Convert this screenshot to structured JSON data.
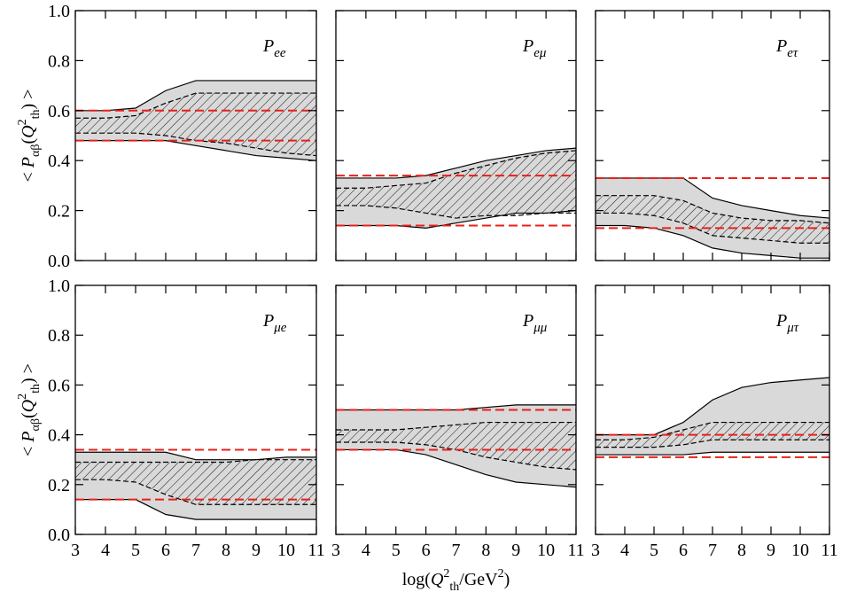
{
  "chart_data": [
    {
      "type": "band",
      "title": "P",
      "title_sub": "ee",
      "ylabel": [
        {
          "text": "< ",
          "shift": "none"
        },
        {
          "text": "P",
          "shift": "none",
          "italic": true
        },
        {
          "text": "αβ",
          "shift": "sub"
        },
        {
          "text": "(",
          "shift": "none"
        },
        {
          "text": "Q",
          "shift": "none",
          "italic": true
        },
        {
          "text": "2",
          "shift": "super"
        },
        {
          "text": "th",
          "shift": "sub"
        },
        {
          "text": ") >",
          "shift": "none"
        }
      ],
      "x": [
        3,
        4,
        5,
        6,
        7,
        8,
        9,
        10,
        11
      ],
      "bands": [
        {
          "color": "#d9d9d9",
          "edge_color": "#000000",
          "hatch": false,
          "upper": [
            0.6,
            0.6,
            0.61,
            0.68,
            0.72,
            0.72,
            0.72,
            0.72,
            0.72
          ],
          "lower": [
            0.48,
            0.48,
            0.48,
            0.48,
            0.46,
            0.44,
            0.42,
            0.41,
            0.4
          ]
        },
        {
          "color": "#000000",
          "edge_color": "#000000",
          "hatch": true,
          "upper": [
            0.57,
            0.57,
            0.58,
            0.63,
            0.67,
            0.67,
            0.67,
            0.67,
            0.67
          ],
          "lower": [
            0.51,
            0.51,
            0.51,
            0.5,
            0.48,
            0.47,
            0.45,
            0.43,
            0.42
          ]
        }
      ],
      "lines": [
        {
          "color": "#e8201a",
          "value": 0.6
        },
        {
          "color": "#e8201a",
          "value": 0.48
        }
      ],
      "xlim": [
        3,
        11
      ],
      "xticks": [
        3,
        4,
        5,
        6,
        7,
        8,
        9,
        10,
        11
      ],
      "ylim": [
        0,
        1
      ],
      "yticks": [
        {
          "value": 0,
          "label": "0.0"
        },
        {
          "value": 0.2,
          "label": "0.2"
        },
        {
          "value": 0.4,
          "label": "0.4"
        },
        {
          "value": 0.6,
          "label": "0.6"
        },
        {
          "value": 0.8,
          "label": "0.8"
        },
        {
          "value": 1,
          "label": "1.0"
        }
      ]
    },
    {
      "type": "band",
      "title": "P",
      "title_sub": "eμ",
      "x": [
        3,
        4,
        5,
        6,
        7,
        8,
        9,
        10,
        11
      ],
      "bands": [
        {
          "color": "#d9d9d9",
          "edge_color": "#000000",
          "hatch": false,
          "upper": [
            0.33,
            0.33,
            0.33,
            0.34,
            0.37,
            0.4,
            0.42,
            0.44,
            0.45
          ],
          "lower": [
            0.14,
            0.14,
            0.14,
            0.13,
            0.15,
            0.17,
            0.19,
            0.19,
            0.2
          ]
        },
        {
          "color": "#000000",
          "edge_color": "#000000",
          "hatch": true,
          "upper": [
            0.29,
            0.29,
            0.3,
            0.31,
            0.35,
            0.38,
            0.41,
            0.43,
            0.44
          ],
          "lower": [
            0.22,
            0.22,
            0.21,
            0.19,
            0.17,
            0.18,
            0.18,
            0.19,
            0.19
          ]
        }
      ],
      "lines": [
        {
          "color": "#e8201a",
          "value": 0.34
        },
        {
          "color": "#e8201a",
          "value": 0.14
        }
      ],
      "xlim": [
        3,
        11
      ],
      "xticks": [
        3,
        4,
        5,
        6,
        7,
        8,
        9,
        10,
        11
      ],
      "ylim": [
        0,
        1
      ],
      "yticks": [
        0,
        0.2,
        0.4,
        0.6,
        0.8,
        1
      ]
    },
    {
      "type": "band",
      "title": "P",
      "title_sub": "eτ",
      "x": [
        3,
        4,
        5,
        6,
        7,
        8,
        9,
        10,
        11
      ],
      "bands": [
        {
          "color": "#d9d9d9",
          "edge_color": "#000000",
          "hatch": false,
          "upper": [
            0.33,
            0.33,
            0.33,
            0.33,
            0.25,
            0.22,
            0.2,
            0.18,
            0.17
          ],
          "lower": [
            0.14,
            0.14,
            0.13,
            0.1,
            0.05,
            0.03,
            0.02,
            0.01,
            0.01
          ]
        },
        {
          "color": "#000000",
          "edge_color": "#000000",
          "hatch": true,
          "upper": [
            0.26,
            0.26,
            0.26,
            0.24,
            0.19,
            0.17,
            0.16,
            0.16,
            0.15
          ],
          "lower": [
            0.19,
            0.19,
            0.18,
            0.15,
            0.1,
            0.09,
            0.08,
            0.07,
            0.07
          ]
        }
      ],
      "lines": [
        {
          "color": "#e8201a",
          "value": 0.33
        },
        {
          "color": "#e8201a",
          "value": 0.13
        }
      ],
      "xlim": [
        3,
        11
      ],
      "xticks": [
        3,
        4,
        5,
        6,
        7,
        8,
        9,
        10,
        11
      ],
      "ylim": [
        0,
        1
      ],
      "yticks": [
        0,
        0.2,
        0.4,
        0.6,
        0.8,
        1
      ]
    },
    {
      "type": "band",
      "title": "P",
      "title_sub": "μe",
      "ylabel": [
        {
          "text": "< ",
          "shift": "none"
        },
        {
          "text": "P",
          "shift": "none",
          "italic": true
        },
        {
          "text": "αβ",
          "shift": "sub"
        },
        {
          "text": "(",
          "shift": "none"
        },
        {
          "text": "Q",
          "shift": "none",
          "italic": true
        },
        {
          "text": "2",
          "shift": "super"
        },
        {
          "text": "th",
          "shift": "sub"
        },
        {
          "text": ") >",
          "shift": "none"
        }
      ],
      "x": [
        3,
        4,
        5,
        6,
        7,
        8,
        9,
        10,
        11
      ],
      "bands": [
        {
          "color": "#d9d9d9",
          "edge_color": "#000000",
          "hatch": false,
          "upper": [
            0.33,
            0.33,
            0.33,
            0.33,
            0.3,
            0.3,
            0.3,
            0.31,
            0.31
          ],
          "lower": [
            0.14,
            0.14,
            0.14,
            0.08,
            0.06,
            0.06,
            0.06,
            0.06,
            0.06
          ]
        },
        {
          "color": "#000000",
          "edge_color": "#000000",
          "hatch": true,
          "upper": [
            0.29,
            0.29,
            0.29,
            0.29,
            0.29,
            0.29,
            0.3,
            0.3,
            0.3
          ],
          "lower": [
            0.22,
            0.22,
            0.21,
            0.16,
            0.12,
            0.12,
            0.12,
            0.12,
            0.12
          ]
        }
      ],
      "lines": [
        {
          "color": "#e8201a",
          "value": 0.34
        },
        {
          "color": "#e8201a",
          "value": 0.14
        }
      ],
      "xlim": [
        3,
        11
      ],
      "xticks": [
        3,
        4,
        5,
        6,
        7,
        8,
        9,
        10,
        11
      ],
      "ylim": [
        0,
        1
      ],
      "yticks": [
        {
          "value": 0,
          "label": "0.0"
        },
        {
          "value": 0.2,
          "label": "0.2"
        },
        {
          "value": 0.4,
          "label": "0.4"
        },
        {
          "value": 0.6,
          "label": "0.6"
        },
        {
          "value": 0.8,
          "label": "0.8"
        },
        {
          "value": 1,
          "label": "1.0"
        }
      ]
    },
    {
      "type": "band",
      "title": "P",
      "title_sub": "μμ",
      "xlabel": [
        {
          "text": "log(",
          "shift": "none"
        },
        {
          "text": "Q",
          "shift": "none",
          "italic": true
        },
        {
          "text": "2",
          "shift": "super"
        },
        {
          "text": "th",
          "shift": "sub"
        },
        {
          "text": "/GeV",
          "shift": "none"
        },
        {
          "text": "2",
          "shift": "super"
        },
        {
          "text": ")",
          "shift": "none"
        }
      ],
      "x": [
        3,
        4,
        5,
        6,
        7,
        8,
        9,
        10,
        11
      ],
      "bands": [
        {
          "color": "#d9d9d9",
          "edge_color": "#000000",
          "hatch": false,
          "upper": [
            0.5,
            0.5,
            0.5,
            0.5,
            0.5,
            0.51,
            0.52,
            0.52,
            0.52
          ],
          "lower": [
            0.34,
            0.34,
            0.34,
            0.32,
            0.28,
            0.24,
            0.21,
            0.2,
            0.19
          ]
        },
        {
          "color": "#000000",
          "edge_color": "#000000",
          "hatch": true,
          "upper": [
            0.42,
            0.42,
            0.42,
            0.43,
            0.44,
            0.45,
            0.45,
            0.45,
            0.45
          ],
          "lower": [
            0.37,
            0.37,
            0.37,
            0.36,
            0.34,
            0.31,
            0.29,
            0.27,
            0.26
          ]
        }
      ],
      "lines": [
        {
          "color": "#e8201a",
          "value": 0.5
        },
        {
          "color": "#e8201a",
          "value": 0.34
        }
      ],
      "xlim": [
        3,
        11
      ],
      "xticks": [
        3,
        4,
        5,
        6,
        7,
        8,
        9,
        10,
        11
      ],
      "ylim": [
        0,
        1
      ],
      "yticks": [
        0,
        0.2,
        0.4,
        0.6,
        0.8,
        1
      ]
    },
    {
      "type": "band",
      "title": "P",
      "title_sub": "μτ",
      "x": [
        3,
        4,
        5,
        6,
        7,
        8,
        9,
        10,
        11
      ],
      "bands": [
        {
          "color": "#d9d9d9",
          "edge_color": "#000000",
          "hatch": false,
          "upper": [
            0.4,
            0.4,
            0.4,
            0.45,
            0.54,
            0.59,
            0.61,
            0.62,
            0.63
          ],
          "lower": [
            0.32,
            0.32,
            0.32,
            0.32,
            0.33,
            0.33,
            0.33,
            0.33,
            0.33
          ]
        },
        {
          "color": "#000000",
          "edge_color": "#000000",
          "hatch": true,
          "upper": [
            0.38,
            0.38,
            0.39,
            0.42,
            0.45,
            0.45,
            0.45,
            0.45,
            0.45
          ],
          "lower": [
            0.35,
            0.35,
            0.35,
            0.36,
            0.38,
            0.38,
            0.38,
            0.38,
            0.38
          ]
        }
      ],
      "lines": [
        {
          "color": "#e8201a",
          "value": 0.4
        },
        {
          "color": "#e8201a",
          "value": 0.31
        }
      ],
      "xlim": [
        3,
        11
      ],
      "xticks": [
        3,
        4,
        5,
        6,
        7,
        8,
        9,
        10,
        11
      ],
      "ylim": [
        0,
        1
      ],
      "yticks": [
        0,
        0.2,
        0.4,
        0.6,
        0.8,
        1
      ]
    }
  ]
}
